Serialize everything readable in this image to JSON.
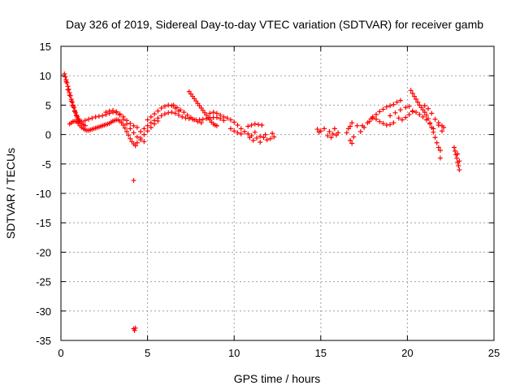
{
  "chart_data": {
    "type": "scatter",
    "title": "Day 326 of 2019, Sidereal Day-to-day VTEC variation (SDTVAR) for receiver gamb",
    "xlabel": "GPS time / hours",
    "ylabel": "SDTVAR / TECUs",
    "xlim": [
      0,
      25
    ],
    "ylim": [
      -35,
      15
    ],
    "xticks": [
      0,
      5,
      10,
      15,
      20,
      25
    ],
    "yticks": [
      15,
      10,
      5,
      0,
      -5,
      -10,
      -15,
      -20,
      -25,
      -30,
      -35
    ],
    "grid": true,
    "marker": "plus",
    "color": "#ff0000",
    "series": [
      {
        "name": "SDTVAR",
        "points": [
          [
            0.2,
            10.3
          ],
          [
            0.25,
            9.8
          ],
          [
            0.3,
            9.3
          ],
          [
            0.35,
            8.8
          ],
          [
            0.4,
            8.2
          ],
          [
            0.45,
            7.7
          ],
          [
            0.5,
            7.1
          ],
          [
            0.55,
            6.6
          ],
          [
            0.6,
            6.0
          ],
          [
            0.65,
            5.5
          ],
          [
            0.7,
            5.0
          ],
          [
            0.75,
            4.6
          ],
          [
            0.8,
            4.1
          ],
          [
            0.85,
            3.7
          ],
          [
            0.9,
            3.3
          ],
          [
            0.95,
            3.0
          ],
          [
            1.0,
            2.7
          ],
          [
            1.05,
            2.4
          ],
          [
            1.1,
            2.2
          ],
          [
            1.2,
            1.9
          ],
          [
            1.3,
            1.7
          ],
          [
            1.4,
            1.5
          ],
          [
            0.3,
            9.0
          ],
          [
            0.4,
            7.6
          ],
          [
            0.5,
            6.7
          ],
          [
            0.6,
            5.7
          ],
          [
            0.7,
            4.8
          ],
          [
            0.8,
            3.9
          ],
          [
            0.9,
            3.2
          ],
          [
            1.0,
            2.6
          ],
          [
            0.5,
            1.8
          ],
          [
            0.6,
            2.0
          ],
          [
            0.7,
            2.2
          ],
          [
            0.8,
            2.3
          ],
          [
            0.9,
            2.2
          ],
          [
            1.0,
            1.9
          ],
          [
            1.1,
            1.5
          ],
          [
            1.2,
            1.2
          ],
          [
            1.3,
            1.0
          ],
          [
            1.4,
            0.8
          ],
          [
            1.5,
            0.7
          ],
          [
            1.6,
            0.7
          ],
          [
            1.7,
            0.8
          ],
          [
            1.8,
            0.9
          ],
          [
            1.9,
            1.0
          ],
          [
            2.0,
            1.1
          ],
          [
            2.1,
            1.2
          ],
          [
            2.2,
            1.3
          ],
          [
            2.3,
            1.4
          ],
          [
            2.4,
            1.5
          ],
          [
            2.5,
            1.6
          ],
          [
            2.6,
            1.7
          ],
          [
            2.7,
            1.8
          ],
          [
            2.8,
            1.9
          ],
          [
            2.9,
            2.1
          ],
          [
            3.0,
            2.3
          ],
          [
            3.1,
            2.4
          ],
          [
            3.2,
            2.5
          ],
          [
            3.3,
            2.5
          ],
          [
            3.4,
            2.3
          ],
          [
            3.5,
            2.0
          ],
          [
            3.6,
            1.6
          ],
          [
            3.7,
            1.1
          ],
          [
            3.8,
            0.5
          ],
          [
            3.9,
            -0.1
          ],
          [
            4.0,
            -0.7
          ],
          [
            4.1,
            -1.2
          ],
          [
            4.2,
            -1.6
          ],
          [
            4.3,
            -1.9
          ],
          [
            1.0,
            2.0
          ],
          [
            1.2,
            2.2
          ],
          [
            1.4,
            2.4
          ],
          [
            1.6,
            2.6
          ],
          [
            1.8,
            2.8
          ],
          [
            2.0,
            3.0
          ],
          [
            2.2,
            3.1
          ],
          [
            2.4,
            3.2
          ],
          [
            2.6,
            3.4
          ],
          [
            2.8,
            3.6
          ],
          [
            3.0,
            3.8
          ],
          [
            3.2,
            3.7
          ],
          [
            3.4,
            3.3
          ],
          [
            3.6,
            2.6
          ],
          [
            3.8,
            1.8
          ],
          [
            4.0,
            1.0
          ],
          [
            4.2,
            0.3
          ],
          [
            4.4,
            -0.4
          ],
          [
            4.6,
            -0.9
          ],
          [
            4.8,
            -1.2
          ],
          [
            2.6,
            3.8
          ],
          [
            2.8,
            4.0
          ],
          [
            3.0,
            4.1
          ],
          [
            3.2,
            3.9
          ],
          [
            3.4,
            3.5
          ],
          [
            3.6,
            3.0
          ],
          [
            3.8,
            2.4
          ],
          [
            4.0,
            1.9
          ],
          [
            4.2,
            1.5
          ],
          [
            4.4,
            1.2
          ],
          [
            4.6,
            0.5
          ],
          [
            4.8,
            1.0
          ],
          [
            5.0,
            1.5
          ],
          [
            5.2,
            2.0
          ],
          [
            5.4,
            2.4
          ],
          [
            5.6,
            2.8
          ],
          [
            5.8,
            3.2
          ],
          [
            6.0,
            3.5
          ],
          [
            6.2,
            3.7
          ],
          [
            6.4,
            3.8
          ],
          [
            6.6,
            3.6
          ],
          [
            6.8,
            3.3
          ],
          [
            7.0,
            3.0
          ],
          [
            7.2,
            2.8
          ],
          [
            7.4,
            2.7
          ],
          [
            7.6,
            2.6
          ],
          [
            7.8,
            2.5
          ],
          [
            8.0,
            2.5
          ],
          [
            8.2,
            2.6
          ],
          [
            8.4,
            2.7
          ],
          [
            8.6,
            2.8
          ],
          [
            8.8,
            2.9
          ],
          [
            9.0,
            2.9
          ],
          [
            9.2,
            2.7
          ],
          [
            9.4,
            2.4
          ],
          [
            5.0,
            2.5
          ],
          [
            5.2,
            3.0
          ],
          [
            5.4,
            3.5
          ],
          [
            5.6,
            4.0
          ],
          [
            5.8,
            4.5
          ],
          [
            6.0,
            4.8
          ],
          [
            6.2,
            5.0
          ],
          [
            6.4,
            4.9
          ],
          [
            6.6,
            4.5
          ],
          [
            6.8,
            4.0
          ],
          [
            4.4,
            -1.4
          ],
          [
            4.6,
            -0.6
          ],
          [
            4.8,
            0.0
          ],
          [
            5.0,
            0.6
          ],
          [
            5.2,
            1.2
          ],
          [
            5.4,
            1.8
          ],
          [
            5.6,
            2.3
          ],
          [
            7.4,
            7.3
          ],
          [
            7.5,
            6.9
          ],
          [
            7.6,
            6.5
          ],
          [
            7.7,
            6.1
          ],
          [
            7.8,
            5.7
          ],
          [
            7.9,
            5.3
          ],
          [
            8.0,
            4.9
          ],
          [
            8.1,
            4.5
          ],
          [
            8.2,
            4.1
          ],
          [
            8.3,
            3.7
          ],
          [
            8.4,
            3.3
          ],
          [
            8.5,
            2.9
          ],
          [
            8.6,
            2.5
          ],
          [
            8.7,
            2.1
          ],
          [
            8.8,
            1.8
          ],
          [
            8.9,
            1.6
          ],
          [
            9.0,
            1.5
          ],
          [
            6.5,
            5.0
          ],
          [
            6.7,
            4.6
          ],
          [
            6.9,
            4.2
          ],
          [
            7.1,
            3.8
          ],
          [
            7.3,
            3.3
          ],
          [
            7.5,
            2.9
          ],
          [
            7.7,
            2.5
          ],
          [
            7.9,
            2.2
          ],
          [
            8.1,
            2.0
          ],
          [
            8.6,
            3.6
          ],
          [
            8.8,
            3.8
          ],
          [
            9.0,
            3.6
          ],
          [
            9.2,
            3.3
          ],
          [
            9.4,
            3.0
          ],
          [
            9.6,
            2.8
          ],
          [
            9.8,
            2.5
          ],
          [
            10.0,
            2.1
          ],
          [
            10.2,
            1.6
          ],
          [
            10.4,
            1.0
          ],
          [
            10.6,
            0.5
          ],
          [
            10.8,
            0.1
          ],
          [
            11.0,
            -0.2
          ],
          [
            9.8,
            1.0
          ],
          [
            10.0,
            0.6
          ],
          [
            10.2,
            0.3
          ],
          [
            10.4,
            0.1
          ],
          [
            10.8,
            1.4
          ],
          [
            11.0,
            1.6
          ],
          [
            11.2,
            1.8
          ],
          [
            11.4,
            1.7
          ],
          [
            11.6,
            1.6
          ],
          [
            10.9,
            -0.5
          ],
          [
            11.1,
            -1.0
          ],
          [
            11.3,
            -0.6
          ],
          [
            11.5,
            -0.3
          ],
          [
            11.7,
            -0.5
          ],
          [
            11.9,
            -0.9
          ],
          [
            12.1,
            -0.7
          ],
          [
            12.3,
            -0.4
          ],
          [
            11.2,
            0.4
          ],
          [
            11.5,
            -1.3
          ],
          [
            11.8,
            0.0
          ],
          [
            12.2,
            0.2
          ],
          [
            4.2,
            -7.8
          ],
          [
            4.2,
            -33.0
          ],
          [
            4.25,
            -33.3
          ],
          [
            4.3,
            -32.9
          ],
          [
            14.8,
            0.9
          ],
          [
            14.9,
            0.4
          ],
          [
            15.0,
            0.6
          ],
          [
            15.2,
            1.0
          ],
          [
            15.4,
            -0.2
          ],
          [
            15.5,
            0.5
          ],
          [
            15.6,
            -0.5
          ],
          [
            15.7,
            0.1
          ],
          [
            15.8,
            1.0
          ],
          [
            15.9,
            -0.1
          ],
          [
            16.0,
            0.3
          ],
          [
            16.5,
            0.3
          ],
          [
            16.6,
            1.0
          ],
          [
            16.7,
            1.4
          ],
          [
            16.8,
            2.0
          ],
          [
            16.7,
            -1.0
          ],
          [
            16.8,
            -1.5
          ],
          [
            16.9,
            -0.4
          ],
          [
            17.1,
            1.5
          ],
          [
            17.3,
            0.5
          ],
          [
            17.4,
            1.5
          ],
          [
            17.5,
            1.2
          ],
          [
            17.7,
            2.0
          ],
          [
            17.9,
            2.7
          ],
          [
            18.0,
            3.0
          ],
          [
            18.2,
            2.6
          ],
          [
            18.4,
            2.2
          ],
          [
            18.6,
            1.9
          ],
          [
            18.8,
            1.6
          ],
          [
            19.0,
            1.7
          ],
          [
            19.2,
            2.0
          ],
          [
            17.8,
            2.2
          ],
          [
            18.0,
            2.8
          ],
          [
            18.2,
            3.4
          ],
          [
            18.4,
            3.9
          ],
          [
            18.6,
            4.3
          ],
          [
            18.8,
            4.7
          ],
          [
            19.0,
            4.9
          ],
          [
            19.2,
            5.1
          ],
          [
            19.4,
            5.5
          ],
          [
            19.6,
            5.8
          ],
          [
            19.0,
            3.2
          ],
          [
            19.3,
            3.7
          ],
          [
            19.6,
            4.2
          ],
          [
            19.9,
            4.6
          ],
          [
            20.1,
            4.8
          ],
          [
            19.5,
            2.8
          ],
          [
            19.7,
            2.5
          ],
          [
            19.9,
            2.9
          ],
          [
            20.1,
            3.4
          ],
          [
            20.3,
            3.9
          ],
          [
            20.2,
            7.5
          ],
          [
            20.3,
            7.0
          ],
          [
            20.4,
            6.5
          ],
          [
            20.5,
            6.0
          ],
          [
            20.6,
            5.5
          ],
          [
            20.7,
            5.0
          ],
          [
            20.8,
            4.6
          ],
          [
            20.9,
            4.2
          ],
          [
            21.0,
            3.8
          ],
          [
            21.1,
            3.3
          ],
          [
            21.2,
            2.7
          ],
          [
            21.3,
            2.0
          ],
          [
            21.4,
            1.2
          ],
          [
            21.5,
            0.4
          ],
          [
            21.6,
            -0.5
          ],
          [
            21.7,
            -1.4
          ],
          [
            21.8,
            -2.2
          ],
          [
            21.9,
            -2.7
          ],
          [
            20.3,
            4.0
          ],
          [
            20.5,
            3.8
          ],
          [
            20.7,
            3.4
          ],
          [
            20.9,
            3.0
          ],
          [
            21.1,
            2.5
          ],
          [
            21.3,
            1.8
          ],
          [
            21.5,
            1.0
          ],
          [
            21.0,
            4.9
          ],
          [
            21.2,
            4.4
          ],
          [
            21.4,
            3.6
          ],
          [
            21.6,
            2.6
          ],
          [
            21.8,
            1.6
          ],
          [
            22.0,
            0.6
          ],
          [
            21.8,
            2.0
          ],
          [
            22.0,
            1.5
          ],
          [
            22.1,
            1.2
          ],
          [
            21.9,
            -4.0
          ],
          [
            22.7,
            -2.2
          ],
          [
            22.75,
            -2.8
          ],
          [
            22.8,
            -3.4
          ],
          [
            22.85,
            -4.0
          ],
          [
            22.9,
            -4.7
          ],
          [
            22.95,
            -5.3
          ],
          [
            23.0,
            -6.0
          ],
          [
            22.9,
            -3.3
          ],
          [
            23.0,
            -4.5
          ]
        ]
      }
    ]
  }
}
